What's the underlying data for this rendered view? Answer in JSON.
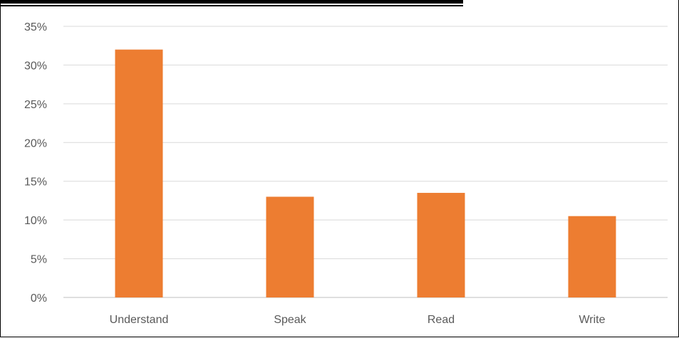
{
  "chart_data": {
    "type": "bar",
    "title": "",
    "xlabel": "",
    "ylabel": "",
    "categories": [
      "Understand",
      "Speak",
      "Read",
      "Write"
    ],
    "values": [
      0.32,
      0.13,
      0.135,
      0.105
    ],
    "ylim": [
      0,
      0.35
    ],
    "yticks": [
      0,
      0.05,
      0.1,
      0.15,
      0.2,
      0.25,
      0.3,
      0.35
    ],
    "ytick_labels": [
      "0%",
      "5%",
      "10%",
      "15%",
      "20%",
      "25%",
      "30%",
      "35%"
    ],
    "grid": true,
    "legend": "none",
    "bar_color": "#ED7D31",
    "gridline_color": "#D9D9D9",
    "label_color": "#595959"
  }
}
